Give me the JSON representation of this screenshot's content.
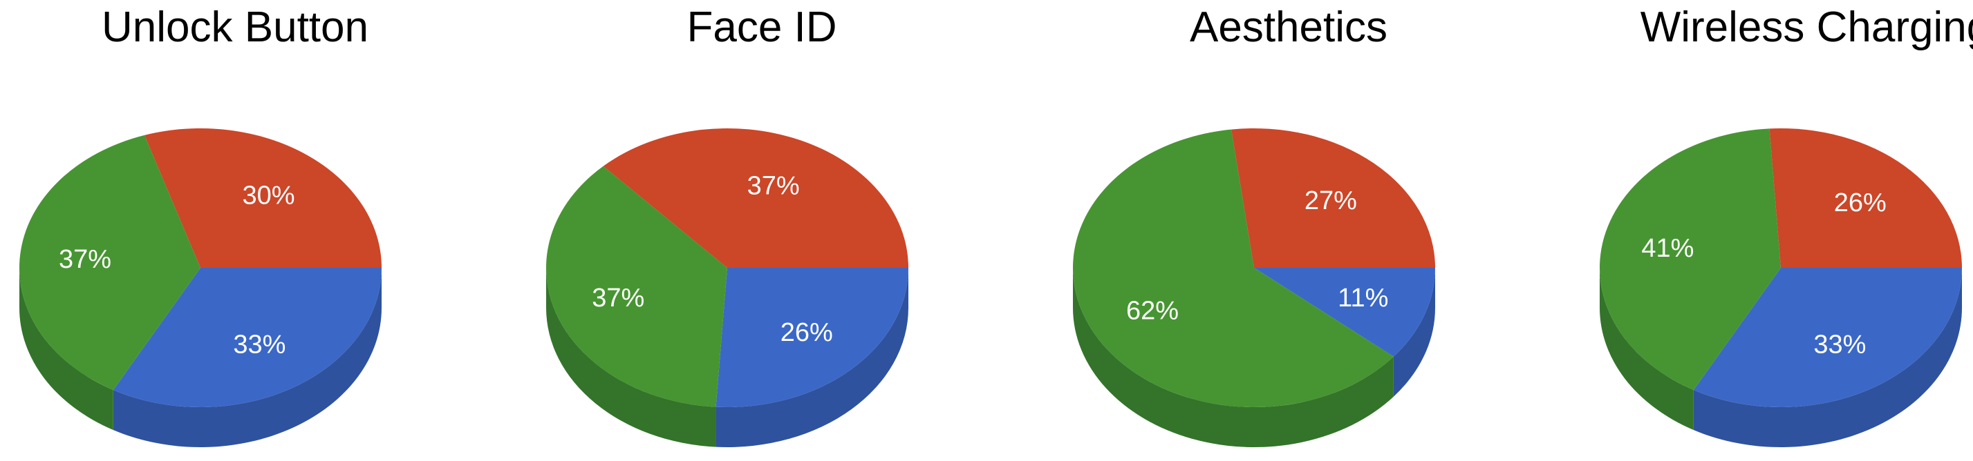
{
  "colors": {
    "blue": "#3b68c7",
    "red": "#cc4628",
    "green": "#479532",
    "blue_side": "#2e529d",
    "red_side": "#a3361e",
    "green_side": "#33742a"
  },
  "chart_data": [
    {
      "type": "pie",
      "title": "Unlock Button",
      "slices": [
        {
          "value": 33,
          "label": "33%",
          "color": "#3b68c7"
        },
        {
          "value": 37,
          "label": "37%",
          "color": "#479532"
        },
        {
          "value": 30,
          "label": "30%",
          "color": "#cc4628"
        }
      ]
    },
    {
      "type": "pie",
      "title": "Face ID",
      "slices": [
        {
          "value": 26,
          "label": "26%",
          "color": "#3b68c7"
        },
        {
          "value": 37,
          "label": "37%",
          "color": "#479532"
        },
        {
          "value": 37,
          "label": "37%",
          "color": "#cc4628"
        }
      ]
    },
    {
      "type": "pie",
      "title": "Aesthetics",
      "slices": [
        {
          "value": 11,
          "label": "11%",
          "color": "#3b68c7"
        },
        {
          "value": 62,
          "label": "62%",
          "color": "#479532"
        },
        {
          "value": 27,
          "label": "27%",
          "color": "#cc4628"
        }
      ]
    },
    {
      "type": "pie",
      "title": "Wireless Charging",
      "slices": [
        {
          "value": 33,
          "label": "33%",
          "color": "#3b68c7"
        },
        {
          "value": 41,
          "label": "41%",
          "color": "#479532"
        },
        {
          "value": 26,
          "label": "26%",
          "color": "#cc4628"
        }
      ]
    }
  ]
}
